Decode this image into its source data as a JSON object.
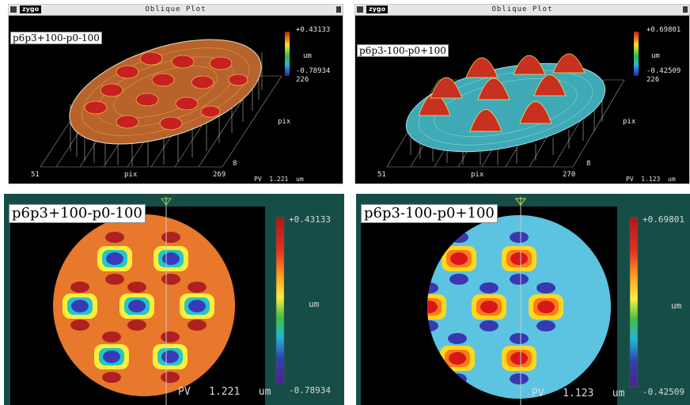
{
  "panels": [
    {
      "window_title": "Oblique Plot",
      "logo": "zygo",
      "sample_label": "p6p3+100-p0-100",
      "scale_max": "+0.43133",
      "scale_unit": "um",
      "scale_min": "-0.78934",
      "scale_count": "226",
      "x_start": "51",
      "x_label": "pix",
      "x_end": "269",
      "y_label": "pix",
      "y_start": "8",
      "pv_label": "PV",
      "pv_value": "1.221",
      "pv_unit": "um",
      "surface_color": "#b8622c",
      "surface_edge": "#e8e2c8",
      "bump_color": "#c62020"
    },
    {
      "window_title": "Oblique Plot",
      "logo": "zygo",
      "sample_label": "p6p3-100-p0+100",
      "scale_max": "+0.69801",
      "scale_unit": "um",
      "scale_min": "-0.42509",
      "scale_count": "226",
      "x_start": "51",
      "x_label": "pix",
      "x_end": "270",
      "y_label": "pix",
      "y_start": "8",
      "pv_label": "PV",
      "pv_value": "1.123",
      "pv_unit": "um",
      "surface_color": "#3fa9b6",
      "surface_edge": "#a8e0e8",
      "bump_color": "#d84030"
    },
    {
      "sample_label": "p6p3+100-p0-100",
      "scale_max": "+0.43133",
      "scale_unit": "um",
      "scale_min": "-0.78934",
      "pv_label": "PV",
      "pv_value": "1.221",
      "pv_unit": "um",
      "disk_color": "#e8782c",
      "cell_outer": "#ffef3c",
      "cell_mid": "#20c8c8",
      "cell_inner": "#3a3ab8",
      "spot_color": "#b02020"
    },
    {
      "sample_label": "p6p3-100-p0+100",
      "scale_max": "+0.69801",
      "scale_unit": "um",
      "scale_min": "-0.42509",
      "pv_label": "PV",
      "pv_value": "1.123",
      "pv_unit": "um",
      "disk_color": "#5cc4e0",
      "cell_outer": "#ffd820",
      "cell_mid": "#ff7a18",
      "cell_inner": "#d81818",
      "spot_color": "#3838b0"
    }
  ]
}
